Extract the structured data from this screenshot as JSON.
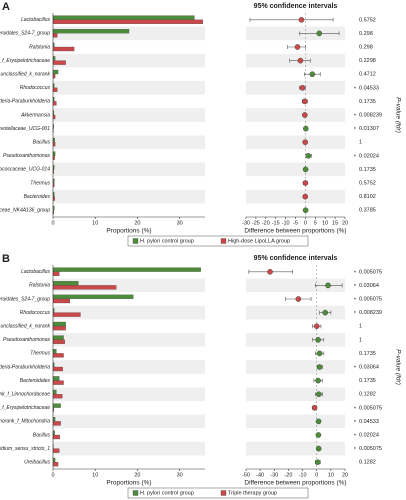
{
  "chart_data": [
    {
      "type": "bar",
      "panel": "A",
      "title": "95% confidence intervals",
      "xlabel": "Proportions (%)",
      "p_label": "P-value (fdr)",
      "categories": [
        "Lactobacillus",
        "norank_f_Bacteroidales_S24-7_group",
        "Ralstonia",
        "norank_f_Erysipelotrichaceae",
        "unclassified_k_norank",
        "Rhodococcus",
        "Burkholderia-Paraburkholderia",
        "Akkermansia",
        "Prevotellaceae_UCG-001",
        "Bacillus",
        "Pseudoxanthomonas",
        "Ruminococcaceae_UCG-014",
        "Thermus",
        "Bacteroides",
        "Lachnospiraceae_NK4A136_group"
      ],
      "series": [
        {
          "name": "H. pylori control group",
          "color": "#4e8c3c",
          "values": [
            33.5,
            18,
            0.3,
            0.5,
            1.2,
            0.3,
            0.3,
            0.2,
            0.2,
            0.4,
            0.5,
            0.3,
            0.3,
            0.3,
            0.3
          ]
        },
        {
          "name": "High-dose LipoLLA group",
          "color": "#c9484a",
          "values": [
            35.5,
            1,
            5,
            3,
            0.5,
            1,
            0.8,
            0.5,
            0.1,
            0.5,
            0.4,
            0.2,
            0.3,
            0.4,
            0.2
          ]
        }
      ],
      "xlim": [
        0,
        36
      ],
      "xticks": [
        0,
        10,
        20,
        30
      ],
      "ci": {
        "xlabel": "Difference between proportions (%)",
        "xlim": [
          -30,
          20
        ],
        "xticks": [
          -30,
          -25,
          -20,
          -15,
          -10,
          -5,
          0,
          5,
          10,
          15,
          20
        ],
        "values": [
          -2,
          7,
          -4,
          -2.5,
          3.5,
          -1.5,
          -0.3,
          -0.3,
          0.2,
          -0.1,
          1.5,
          0.1,
          0,
          -0.1,
          0.1
        ],
        "lower": [
          -28,
          -3,
          -9,
          -8,
          -0.5,
          -3,
          -1.5,
          -1,
          0.05,
          -1,
          0.3,
          -0.5,
          -1,
          -1,
          -0.5
        ],
        "upper": [
          14,
          17,
          0,
          2.5,
          7.5,
          0,
          1,
          0,
          0.5,
          0.8,
          3,
          0.8,
          1,
          0.8,
          0.7
        ]
      },
      "p_values": [
        0.5752,
        0.298,
        0.298,
        0.2298,
        0.4712,
        0.04533,
        0.1735,
        0.008239,
        0.01307,
        1,
        0.02024,
        0.1735,
        0.5752,
        0.8102,
        0.3785
      ],
      "sig": [
        null,
        null,
        null,
        null,
        null,
        "*",
        null,
        "*",
        "*",
        null,
        "*",
        null,
        null,
        null,
        null
      ]
    },
    {
      "type": "bar",
      "panel": "B",
      "title": "95% confidence intervals",
      "xlabel": "Proportions (%)",
      "p_label": "P-value (fdr)",
      "categories": [
        "Lactobacillus",
        "Ralstonia",
        "norank_f_Bacteroidales_S24-7_group",
        "Rhodococcus",
        "unclassified_k_norank",
        "Pseudoxanthomonas",
        "Thermus",
        "Burkholderia-Paraburkholderia",
        "Bacteroidales",
        "norank_f_Linnochordaceae",
        "norank_f_Erysipelotrichaceae",
        "norank_f_Mitochondria",
        "Bacillus",
        "Clostridium_sensu_stricto_1",
        "Ureibacillus"
      ],
      "series": [
        {
          "name": "H. pylori control group",
          "color": "#4e8c3c",
          "values": [
            35,
            6,
            19,
            0.3,
            3,
            2.5,
            0.8,
            0.3,
            1.5,
            0.8,
            1.8,
            0.5,
            0.4,
            0.1,
            0.5
          ]
        },
        {
          "name": "Triple therapy group",
          "color": "#c9484a",
          "values": [
            1.5,
            15,
            4,
            6.5,
            3,
            2.8,
            2.5,
            2.3,
            2.5,
            2.2,
            0.2,
            1.8,
            1.6,
            1.5,
            1.2
          ]
        }
      ],
      "xlim": [
        0,
        36
      ],
      "xticks": [
        0,
        10,
        20,
        30
      ],
      "ci": {
        "xlabel": "Difference between proportions (%)",
        "xlim": [
          -50,
          20
        ],
        "xticks": [
          -50,
          -40,
          -30,
          -20,
          -10,
          0,
          10,
          20
        ],
        "values": [
          -33,
          8,
          -13,
          6,
          0,
          1,
          2,
          2,
          1,
          1.5,
          -1.5,
          1.3,
          1.2,
          1.4,
          0.7
        ],
        "lower": [
          -48,
          -1,
          -22,
          2,
          -3,
          -3,
          -1,
          0.5,
          -2,
          -1,
          -3,
          0.1,
          0.2,
          0.5,
          -1
        ],
        "upper": [
          -17,
          18,
          -4,
          10,
          3,
          5,
          5,
          4,
          4,
          4,
          -0.3,
          2.5,
          2.2,
          2.3,
          2.5
        ]
      },
      "p_values": [
        0.005075,
        0.03064,
        0.005075,
        0.008239,
        1,
        1,
        0.1735,
        0.03064,
        0.1735,
        0.1282,
        0.005075,
        0.04533,
        0.02024,
        0.005075,
        0.1282
      ],
      "sig": [
        "*",
        "*",
        "*",
        "*",
        null,
        null,
        null,
        "*",
        null,
        null,
        "*",
        "*",
        "*",
        "*",
        null
      ]
    }
  ]
}
